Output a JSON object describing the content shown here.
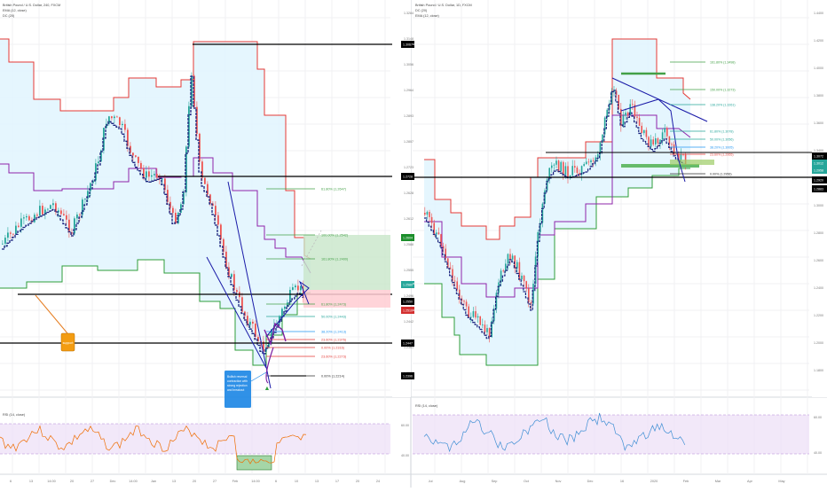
{
  "left": {
    "legend": [
      "British Pound / U.S. Dollar, 240, FXCM",
      "EMA (12, close)",
      "DC (20)"
    ],
    "price_labels": [
      "1.3284",
      "1.3148",
      "1.3056",
      "1.2964",
      "1.2893",
      "1.2807",
      "1.2723",
      "1.2628",
      "1.2612",
      "1.2588",
      "1.2555",
      "1.2496",
      "1.2442",
      "1.2361",
      "1.2280"
    ],
    "highlighted_prices": [
      "1.3067",
      "1.2728",
      "1.2604",
      "1.2580",
      "1.2550",
      "1.2447",
      "1.2396"
    ],
    "fib_labels": [
      "61.80% (1.2647)",
      "100.00% (1.2542)",
      "161.80% (1.2400)",
      "61.80% (1.2473)",
      "50.00% (1.2443)",
      "38.20% (1.2413)",
      "23.60% (1.2376)",
      "0.00% (1.2316)",
      "23.60% (1.2273)",
      "0.00% (1.2214)"
    ],
    "annotations": {
      "support": "support",
      "bullish": "Bullish reversal contraction with strong rejection and breakout"
    },
    "dates": [
      "6",
      "13",
      "14:00",
      "20",
      "27",
      "Dec",
      "14:00",
      "Jan",
      "13",
      "20",
      "27",
      "Feb",
      "14:00",
      "6",
      "10",
      "13",
      "17",
      "20",
      "24"
    ],
    "rsi": {
      "legend": "RSI (14, close)",
      "labels": [
        "60.00",
        "40.00"
      ]
    }
  },
  "right": {
    "legend": [
      "British Pound / U.S. Dollar, 1D, FXCM",
      "DC (20)",
      "EMA (12, close)"
    ],
    "price_labels": [
      "1.4400",
      "1.4200",
      "1.4000",
      "1.3800",
      "1.3600",
      "1.3400",
      "1.3200",
      "1.3000",
      "1.2800",
      "1.2600",
      "1.2400",
      "1.2200",
      "1.2000",
      "1.1800"
    ],
    "highlighted_prices": [
      "1.3072",
      "1.3012",
      "1.2958",
      "1.2920",
      "1.2883"
    ],
    "fib_labels": [
      "161.80% (1.3498)",
      "150.00% (1.3273)",
      "138.20% (1.3261)",
      "61.80% (1.3078)",
      "50.00% (1.3056)",
      "38.20% (1.3005)",
      "23.60% (1.2955)",
      "0.00% (1.2956)"
    ],
    "dates": [
      "Jul",
      "Aug",
      "Sep",
      "Oct",
      "Nov",
      "Dec",
      "16",
      "2020",
      "Feb",
      "Mar",
      "Apr",
      "May"
    ],
    "rsi": {
      "legend": "RSI (14, close)",
      "labels": [
        "60.00",
        "40.00"
      ]
    }
  },
  "colors": {
    "upper_band": "#e53935",
    "lower_band": "#2e9e3a",
    "mid_band": "#8e24aa",
    "ema": "#1a237e",
    "band_fill": "#e1f5fe",
    "trend_line": "#1a1aa8",
    "rsi_line_left": "#ef6c00",
    "rsi_line_right": "#3f8fd4",
    "rsi_band": "#ede0f7",
    "candle_up": "#26a69a",
    "candle_down": "#ef5350"
  },
  "icons": [
    "arrow-up-icon",
    "arrow-down-icon"
  ]
}
